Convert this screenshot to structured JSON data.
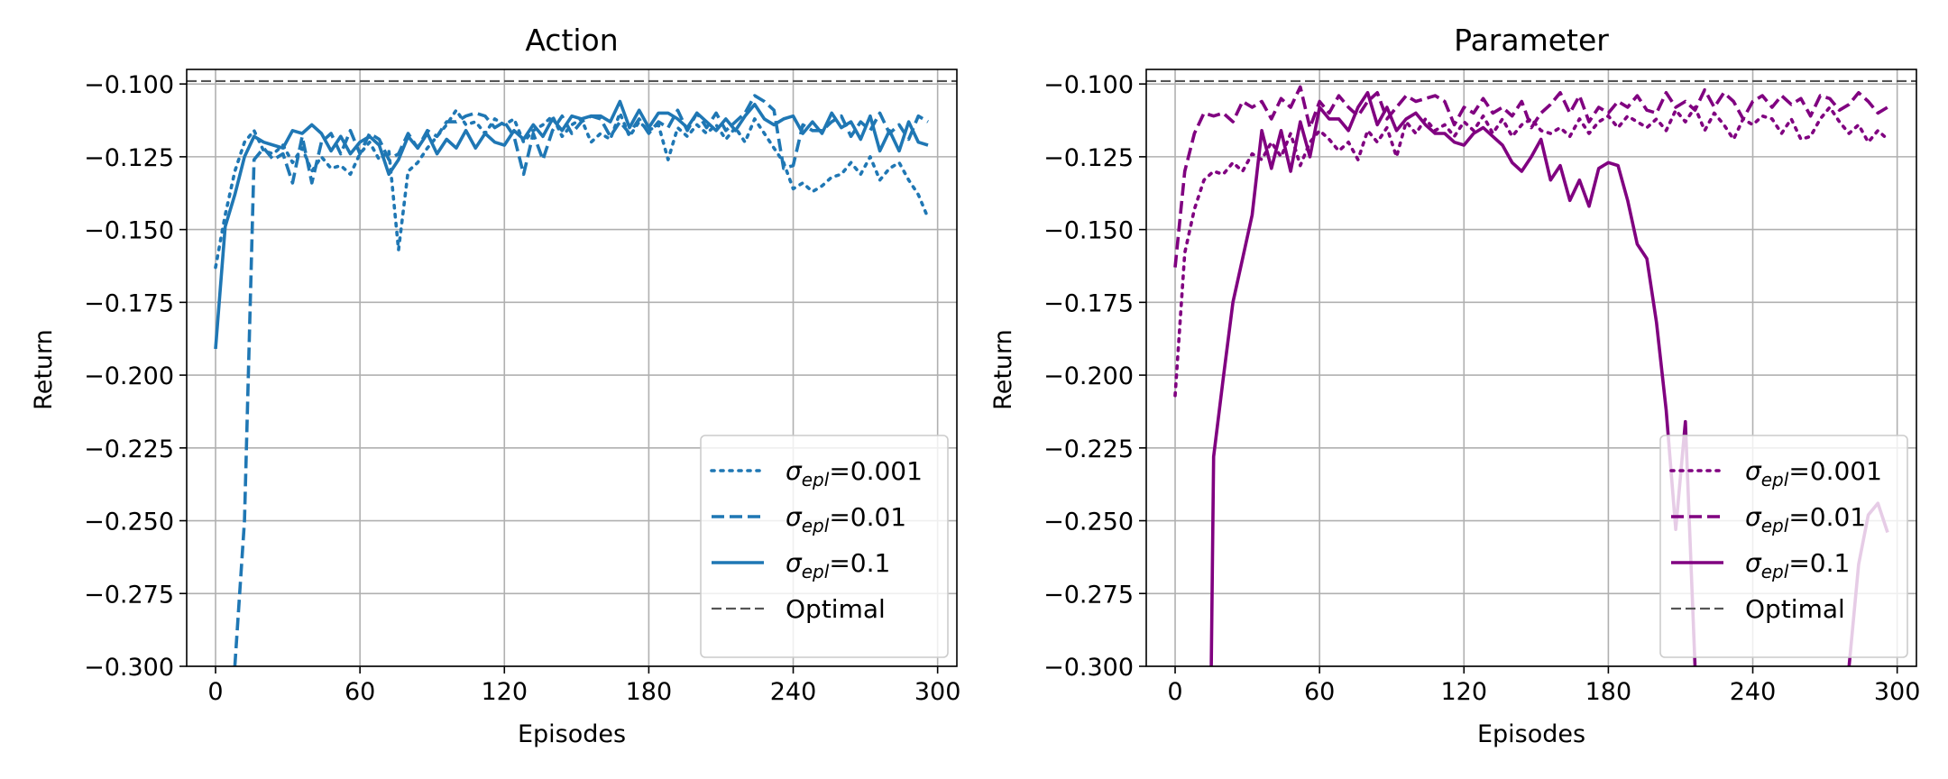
{
  "chart_data": [
    {
      "type": "line",
      "title": "Action",
      "xlabel": "Episodes",
      "ylabel": "Return",
      "xlim": [
        -12,
        308
      ],
      "ylim": [
        -0.3,
        -0.095
      ],
      "xticks": [
        "0",
        "60",
        "120",
        "180",
        "240",
        "300"
      ],
      "yticks": [
        "−0.100",
        "−0.125",
        "−0.150",
        "−0.175",
        "−0.200",
        "−0.225",
        "−0.250",
        "−0.275",
        "−0.300"
      ],
      "grid": true,
      "legend_position": "lower-right",
      "optimal": -0.099,
      "color": "#1f77b4",
      "series": [
        {
          "name": "σepl=0.001",
          "style": "dotted",
          "x": [
            0,
            4,
            8,
            12,
            16,
            20,
            24,
            28,
            32,
            36,
            40,
            44,
            48,
            52,
            56,
            60,
            64,
            68,
            72,
            76,
            80,
            84,
            88,
            92,
            96,
            100,
            104,
            108,
            112,
            116,
            120,
            124,
            128,
            132,
            136,
            140,
            144,
            148,
            152,
            156,
            160,
            164,
            168,
            172,
            176,
            180,
            184,
            188,
            192,
            196,
            200,
            204,
            208,
            212,
            216,
            220,
            224,
            228,
            232,
            236,
            240,
            244,
            248,
            252,
            256,
            260,
            264,
            268,
            272,
            276,
            280,
            284,
            288,
            292,
            296
          ],
          "y": [
            -0.163,
            -0.145,
            -0.13,
            -0.12,
            -0.116,
            -0.123,
            -0.124,
            -0.121,
            -0.127,
            -0.122,
            -0.13,
            -0.125,
            -0.129,
            -0.128,
            -0.131,
            -0.124,
            -0.12,
            -0.126,
            -0.123,
            -0.157,
            -0.13,
            -0.127,
            -0.122,
            -0.118,
            -0.114,
            -0.109,
            -0.114,
            -0.113,
            -0.117,
            -0.112,
            -0.114,
            -0.112,
            -0.12,
            -0.116,
            -0.114,
            -0.111,
            -0.118,
            -0.114,
            -0.112,
            -0.12,
            -0.117,
            -0.119,
            -0.11,
            -0.118,
            -0.113,
            -0.116,
            -0.114,
            -0.126,
            -0.115,
            -0.118,
            -0.114,
            -0.117,
            -0.114,
            -0.119,
            -0.115,
            -0.12,
            -0.112,
            -0.117,
            -0.122,
            -0.127,
            -0.136,
            -0.134,
            -0.137,
            -0.135,
            -0.132,
            -0.131,
            -0.127,
            -0.131,
            -0.125,
            -0.133,
            -0.129,
            -0.127,
            -0.133,
            -0.138,
            -0.146
          ]
        },
        {
          "name": "σepl=0.01",
          "style": "dashed",
          "x": [
            8,
            12,
            16,
            20,
            24,
            28,
            32,
            36,
            40,
            44,
            48,
            52,
            56,
            60,
            64,
            68,
            72,
            76,
            80,
            84,
            88,
            92,
            96,
            100,
            104,
            108,
            112,
            116,
            120,
            124,
            128,
            132,
            136,
            140,
            144,
            148,
            152,
            156,
            160,
            164,
            168,
            172,
            176,
            180,
            184,
            188,
            192,
            196,
            200,
            204,
            208,
            212,
            216,
            220,
            224,
            228,
            232,
            236,
            240,
            244,
            248,
            252,
            256,
            260,
            264,
            268,
            272,
            276,
            280,
            284,
            288,
            292,
            296
          ],
          "y": [
            -0.3,
            -0.25,
            -0.126,
            -0.122,
            -0.126,
            -0.124,
            -0.134,
            -0.118,
            -0.134,
            -0.12,
            -0.117,
            -0.124,
            -0.116,
            -0.124,
            -0.117,
            -0.119,
            -0.126,
            -0.124,
            -0.117,
            -0.122,
            -0.116,
            -0.118,
            -0.113,
            -0.113,
            -0.111,
            -0.11,
            -0.111,
            -0.115,
            -0.113,
            -0.118,
            -0.131,
            -0.117,
            -0.126,
            -0.116,
            -0.111,
            -0.117,
            -0.113,
            -0.111,
            -0.112,
            -0.118,
            -0.113,
            -0.117,
            -0.112,
            -0.117,
            -0.113,
            -0.115,
            -0.109,
            -0.116,
            -0.11,
            -0.115,
            -0.11,
            -0.116,
            -0.113,
            -0.11,
            -0.104,
            -0.106,
            -0.109,
            -0.129,
            -0.128,
            -0.114,
            -0.116,
            -0.116,
            -0.113,
            -0.111,
            -0.118,
            -0.113,
            -0.116,
            -0.11,
            -0.117,
            -0.114,
            -0.119,
            -0.111,
            -0.113
          ]
        },
        {
          "name": "σepl=0.1",
          "style": "solid",
          "x": [
            0,
            4,
            8,
            12,
            16,
            20,
            24,
            28,
            32,
            36,
            40,
            44,
            48,
            52,
            56,
            60,
            64,
            68,
            72,
            76,
            80,
            84,
            88,
            92,
            96,
            100,
            104,
            108,
            112,
            116,
            120,
            124,
            128,
            132,
            136,
            140,
            144,
            148,
            152,
            156,
            160,
            164,
            168,
            172,
            176,
            180,
            184,
            188,
            192,
            196,
            200,
            204,
            208,
            212,
            216,
            220,
            224,
            228,
            232,
            236,
            240,
            244,
            248,
            252,
            256,
            260,
            264,
            268,
            272,
            276,
            280,
            284,
            288,
            292,
            296
          ],
          "y": [
            -0.191,
            -0.149,
            -0.138,
            -0.125,
            -0.118,
            -0.12,
            -0.121,
            -0.122,
            -0.116,
            -0.117,
            -0.114,
            -0.117,
            -0.123,
            -0.118,
            -0.124,
            -0.12,
            -0.118,
            -0.121,
            -0.131,
            -0.126,
            -0.118,
            -0.122,
            -0.117,
            -0.124,
            -0.119,
            -0.122,
            -0.116,
            -0.122,
            -0.117,
            -0.12,
            -0.121,
            -0.116,
            -0.119,
            -0.114,
            -0.118,
            -0.112,
            -0.116,
            -0.111,
            -0.112,
            -0.111,
            -0.111,
            -0.113,
            -0.106,
            -0.115,
            -0.109,
            -0.115,
            -0.11,
            -0.11,
            -0.112,
            -0.115,
            -0.11,
            -0.113,
            -0.116,
            -0.112,
            -0.116,
            -0.111,
            -0.107,
            -0.112,
            -0.114,
            -0.112,
            -0.111,
            -0.117,
            -0.113,
            -0.117,
            -0.11,
            -0.115,
            -0.113,
            -0.119,
            -0.111,
            -0.123,
            -0.116,
            -0.123,
            -0.113,
            -0.12,
            -0.121
          ]
        }
      ]
    },
    {
      "type": "line",
      "title": "Parameter",
      "xlabel": "Episodes",
      "ylabel": "Return",
      "xlim": [
        -12,
        308
      ],
      "ylim": [
        -0.3,
        -0.095
      ],
      "xticks": [
        "0",
        "60",
        "120",
        "180",
        "240",
        "300"
      ],
      "yticks": [
        "−0.100",
        "−0.125",
        "−0.150",
        "−0.175",
        "−0.200",
        "−0.225",
        "−0.250",
        "−0.275",
        "−0.300"
      ],
      "grid": true,
      "legend_position": "lower-right",
      "optimal": -0.099,
      "color": "#800080",
      "series": [
        {
          "name": "σepl=0.001",
          "style": "dotted",
          "x": [
            0,
            4,
            8,
            12,
            16,
            20,
            24,
            28,
            32,
            36,
            40,
            44,
            48,
            52,
            56,
            60,
            64,
            68,
            72,
            76,
            80,
            84,
            88,
            92,
            96,
            100,
            104,
            108,
            112,
            116,
            120,
            124,
            128,
            132,
            136,
            140,
            144,
            148,
            152,
            156,
            160,
            164,
            168,
            172,
            176,
            180,
            184,
            188,
            192,
            196,
            200,
            204,
            208,
            212,
            216,
            220,
            224,
            228,
            232,
            236,
            240,
            244,
            248,
            252,
            256,
            260,
            264,
            268,
            272,
            276,
            280,
            284,
            288,
            292,
            296
          ],
          "y": [
            -0.207,
            -0.158,
            -0.143,
            -0.133,
            -0.13,
            -0.131,
            -0.127,
            -0.13,
            -0.124,
            -0.126,
            -0.12,
            -0.125,
            -0.117,
            -0.128,
            -0.12,
            -0.116,
            -0.119,
            -0.123,
            -0.12,
            -0.126,
            -0.116,
            -0.12,
            -0.115,
            -0.125,
            -0.113,
            -0.117,
            -0.112,
            -0.116,
            -0.114,
            -0.118,
            -0.113,
            -0.116,
            -0.111,
            -0.117,
            -0.112,
            -0.118,
            -0.114,
            -0.112,
            -0.116,
            -0.117,
            -0.115,
            -0.118,
            -0.112,
            -0.117,
            -0.113,
            -0.111,
            -0.115,
            -0.111,
            -0.113,
            -0.115,
            -0.112,
            -0.116,
            -0.109,
            -0.113,
            -0.108,
            -0.116,
            -0.11,
            -0.114,
            -0.119,
            -0.112,
            -0.114,
            -0.111,
            -0.112,
            -0.117,
            -0.112,
            -0.119,
            -0.118,
            -0.112,
            -0.108,
            -0.113,
            -0.117,
            -0.114,
            -0.12,
            -0.116,
            -0.119
          ]
        },
        {
          "name": "σepl=0.01",
          "style": "dashed",
          "x": [
            0,
            4,
            8,
            12,
            16,
            20,
            24,
            28,
            32,
            36,
            40,
            44,
            48,
            52,
            56,
            60,
            64,
            68,
            72,
            76,
            80,
            84,
            88,
            92,
            96,
            100,
            104,
            108,
            112,
            116,
            120,
            124,
            128,
            132,
            136,
            140,
            144,
            148,
            152,
            156,
            160,
            164,
            168,
            172,
            176,
            180,
            184,
            188,
            192,
            196,
            200,
            204,
            208,
            212,
            216,
            220,
            224,
            228,
            232,
            236,
            240,
            244,
            248,
            252,
            256,
            260,
            264,
            268,
            272,
            276,
            280,
            284,
            288,
            292,
            296
          ],
          "y": [
            -0.163,
            -0.13,
            -0.117,
            -0.11,
            -0.111,
            -0.11,
            -0.113,
            -0.106,
            -0.108,
            -0.106,
            -0.112,
            -0.105,
            -0.108,
            -0.101,
            -0.115,
            -0.106,
            -0.11,
            -0.104,
            -0.108,
            -0.111,
            -0.106,
            -0.103,
            -0.112,
            -0.108,
            -0.104,
            -0.106,
            -0.105,
            -0.104,
            -0.106,
            -0.114,
            -0.108,
            -0.11,
            -0.105,
            -0.11,
            -0.108,
            -0.111,
            -0.106,
            -0.115,
            -0.11,
            -0.107,
            -0.103,
            -0.11,
            -0.104,
            -0.113,
            -0.108,
            -0.11,
            -0.106,
            -0.108,
            -0.104,
            -0.109,
            -0.11,
            -0.103,
            -0.108,
            -0.106,
            -0.109,
            -0.102,
            -0.108,
            -0.103,
            -0.106,
            -0.112,
            -0.106,
            -0.104,
            -0.108,
            -0.104,
            -0.107,
            -0.105,
            -0.111,
            -0.104,
            -0.105,
            -0.109,
            -0.107,
            -0.103,
            -0.106,
            -0.11,
            -0.108
          ]
        },
        {
          "name": "σepl=0.1",
          "style": "solid",
          "x": [
            0,
            4,
            8,
            12,
            15,
            16,
            20,
            24,
            28,
            32,
            36,
            40,
            44,
            48,
            52,
            56,
            60,
            64,
            68,
            72,
            76,
            80,
            84,
            88,
            92,
            96,
            100,
            104,
            108,
            112,
            116,
            120,
            124,
            128,
            132,
            136,
            140,
            144,
            148,
            152,
            156,
            160,
            164,
            168,
            172,
            176,
            180,
            184,
            188,
            192,
            196,
            200,
            204,
            208,
            212,
            216,
            220,
            224,
            228,
            232,
            236,
            240,
            244,
            248,
            252,
            256,
            260,
            264,
            268,
            272,
            276,
            280,
            284,
            288,
            292,
            296
          ],
          "y": [
            null,
            null,
            null,
            null,
            -0.3,
            -0.228,
            -0.201,
            -0.175,
            -0.16,
            -0.145,
            -0.116,
            -0.129,
            -0.116,
            -0.13,
            -0.113,
            -0.125,
            -0.108,
            -0.112,
            -0.112,
            -0.116,
            -0.108,
            -0.103,
            -0.114,
            -0.108,
            -0.116,
            -0.112,
            -0.11,
            -0.114,
            -0.117,
            -0.117,
            -0.12,
            -0.121,
            -0.117,
            -0.115,
            -0.118,
            -0.121,
            -0.127,
            -0.13,
            -0.125,
            -0.119,
            -0.133,
            -0.128,
            -0.14,
            -0.133,
            -0.142,
            -0.129,
            -0.127,
            -0.128,
            -0.14,
            -0.155,
            -0.16,
            -0.182,
            -0.212,
            -0.253,
            -0.216,
            -0.3,
            null,
            null,
            null,
            null,
            null,
            null,
            null,
            null,
            null,
            null,
            null,
            null,
            null,
            null,
            null,
            -0.3,
            -0.265,
            -0.248,
            -0.244,
            -0.254
          ]
        }
      ]
    }
  ],
  "legend_labels": {
    "optimal": "Optimal",
    "sigma": "σ",
    "subscript": "epl",
    "values": [
      "=0.001",
      "=0.01",
      "=0.1"
    ]
  }
}
